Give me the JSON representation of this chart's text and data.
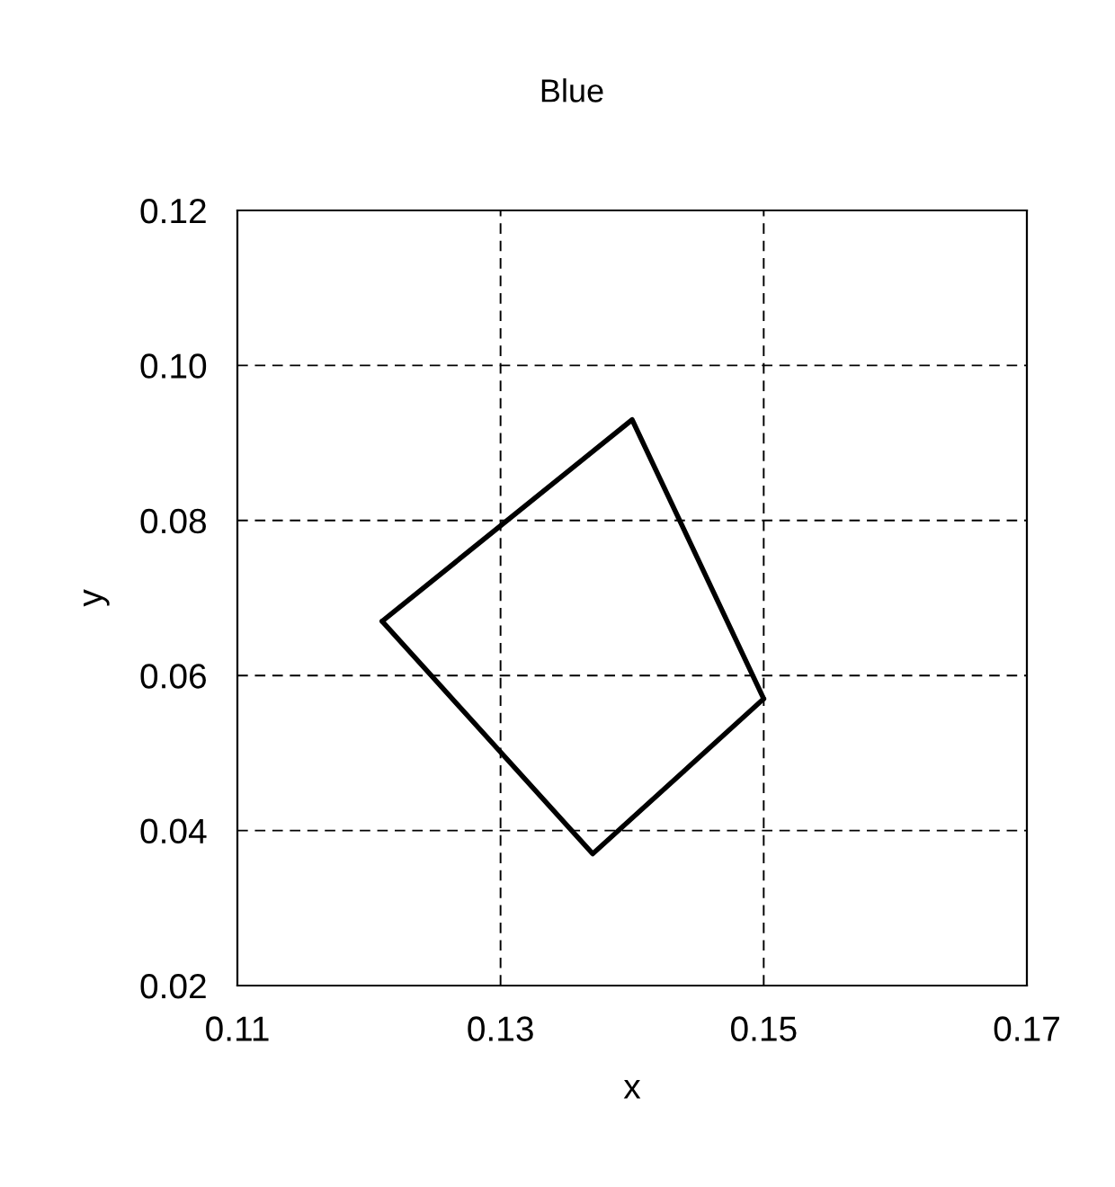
{
  "chart_data": {
    "type": "line",
    "title": "Blue",
    "xlabel": "x",
    "ylabel": "y",
    "series": [
      {
        "color": "#000000",
        "x": [
          0.121,
          0.14,
          0.15
        ],
        "values": [
          0.067,
          0.093,
          0.057
        ]
      },
      {
        "color": "#000000",
        "x": [
          0.121,
          0.137,
          0.15
        ],
        "values": [
          0.067,
          0.037,
          0.057
        ]
      }
    ],
    "xlim": [
      0.11,
      0.17
    ],
    "xticks": [
      0.11,
      0.13,
      0.15,
      0.17
    ],
    "ylim": [
      0.02,
      0.12
    ],
    "yticks": [
      0.02,
      0.04,
      0.06,
      0.08,
      {
        "value": 0.1,
        "label": "0.10"
      },
      0.12
    ],
    "grid": true,
    "marker": "none",
    "line_style": "solid"
  }
}
